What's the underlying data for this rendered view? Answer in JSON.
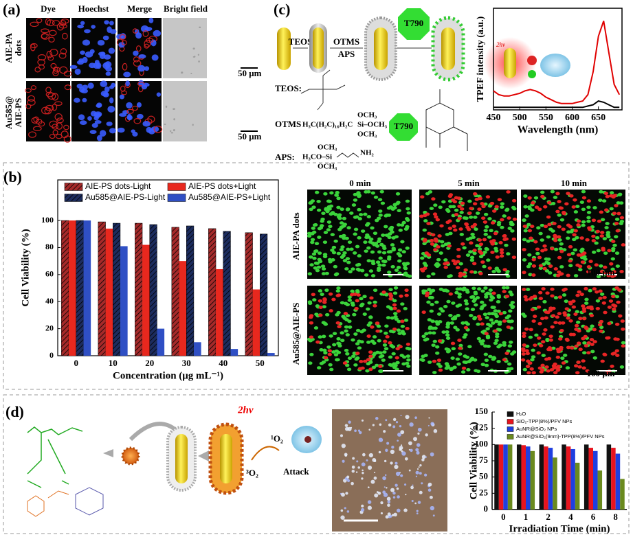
{
  "panels": {
    "a": {
      "label": "(a)",
      "columns": [
        "Dye",
        "Hoechst",
        "Merge",
        "Bright field"
      ],
      "rows": [
        [
          "AIE-PA",
          "dots"
        ],
        [
          "Au585@",
          "AIE-PS"
        ]
      ],
      "scale_bars": [
        "50 μm",
        "50 μm"
      ]
    },
    "b": {
      "label": "(b)",
      "columns": [
        "0 min",
        "5 min",
        "10 min"
      ],
      "rows": [
        "AIE-PA dots",
        "Au585@AIE-PS"
      ],
      "scale_bars": [
        "100 μm",
        "100 μm"
      ]
    },
    "c": {
      "label": "(c)",
      "steps": [
        "TEOS",
        "OTMS",
        "APS"
      ],
      "dye": "T790",
      "teos": "TEOS:",
      "otms": "OTMS",
      "otms_chain": "H₃C(H₂C)₁₆H₂C",
      "otms_groups": [
        "OCH₃",
        "Si–OCH₃",
        "OCH₃"
      ],
      "aps": "APS:",
      "aps_groups": [
        "OCH₃",
        "H₃CO–Si",
        "OCH₃",
        "NH₂"
      ],
      "dye_label": "T790",
      "inset_label": "2hν"
    },
    "d": {
      "label": "(d)",
      "excitation": "2hν",
      "singlet": "¹O₂",
      "triplet": "³O₂",
      "action": "Attack"
    }
  },
  "chart_data": [
    {
      "type": "line",
      "xlabel": "Wavelength (nm)",
      "ylabel": "TPEF intensity (a.u.)",
      "x": [
        450,
        460,
        470,
        480,
        490,
        500,
        510,
        520,
        530,
        540,
        550,
        560,
        570,
        580,
        590,
        600,
        610,
        620,
        630,
        640,
        650,
        660,
        670,
        680,
        690
      ],
      "series": [
        {
          "color": "#e00000",
          "values": [
            0.15,
            0.12,
            0.11,
            0.11,
            0.12,
            0.13,
            0.15,
            0.16,
            0.15,
            0.13,
            0.1,
            0.08,
            0.06,
            0.05,
            0.05,
            0.05,
            0.06,
            0.07,
            0.12,
            0.3,
            0.58,
            0.7,
            0.45,
            0.2,
            0.12
          ]
        },
        {
          "color": "#000000",
          "values": [
            0.02,
            0.02,
            0.02,
            0.02,
            0.02,
            0.02,
            0.02,
            0.02,
            0.02,
            0.02,
            0.02,
            0.02,
            0.02,
            0.02,
            0.02,
            0.02,
            0.02,
            0.02,
            0.03,
            0.04,
            0.07,
            0.06,
            0.04,
            0.02,
            0.02
          ]
        }
      ],
      "xlim": [
        450,
        695
      ],
      "xticks": [
        450,
        500,
        550,
        600,
        650
      ],
      "ylim": [
        0,
        0.8
      ]
    },
    {
      "type": "bar",
      "xlabel": "Concentration (μg mL⁻¹)",
      "ylabel": "Cell Viability (%)",
      "categories": [
        "0",
        "10",
        "20",
        "30",
        "40",
        "50"
      ],
      "series": [
        {
          "name": "AIE-PS dots-Light",
          "color": "#a52a2a",
          "hatch": true,
          "values": [
            100,
            99,
            98,
            95,
            94,
            91
          ]
        },
        {
          "name": "AIE-PS dots+Light",
          "color": "#e8281e",
          "hatch": false,
          "values": [
            100,
            94,
            82,
            70,
            64,
            49
          ]
        },
        {
          "name": "Au585@AIE-PS-Light",
          "color": "#1c2c5e",
          "hatch": true,
          "values": [
            100,
            98,
            97,
            96,
            92,
            90
          ]
        },
        {
          "name": "Au585@AIE-PS+Light",
          "color": "#2f4fc4",
          "hatch": false,
          "values": [
            100,
            81,
            20,
            10,
            5,
            2
          ]
        }
      ],
      "ylim": [
        0,
        130
      ],
      "yticks": [
        0,
        20,
        40,
        60,
        80,
        100
      ],
      "legend": "top"
    },
    {
      "type": "bar",
      "xlabel": "Irradiation Time (min)",
      "ylabel": "Cell Viability (%)",
      "categories": [
        "0",
        "1",
        "2",
        "4",
        "6",
        "8"
      ],
      "series": [
        {
          "name": "H₂O",
          "color": "#111111",
          "hatch": false,
          "values": [
            100,
            100,
            100,
            100,
            100,
            100
          ]
        },
        {
          "name": "SiO₂-TPP(8%)/PFV NPs",
          "color": "#e8141e",
          "hatch": false,
          "values": [
            100,
            99,
            97,
            97,
            95,
            95
          ]
        },
        {
          "name": "AuNR@SiO₂ NPs",
          "color": "#1f3fe0",
          "hatch": false,
          "values": [
            100,
            97,
            95,
            93,
            90,
            86
          ]
        },
        {
          "name": "AuNR@SiO₂(9nm)-TPP(8%)/PFV NPs",
          "color": "#6a8a1e",
          "hatch": false,
          "values": [
            100,
            90,
            80,
            72,
            60,
            47
          ]
        }
      ],
      "ylim": [
        0,
        150
      ],
      "yticks": [
        0,
        25,
        50,
        75,
        100,
        125,
        150
      ],
      "legend": "upper right"
    }
  ]
}
